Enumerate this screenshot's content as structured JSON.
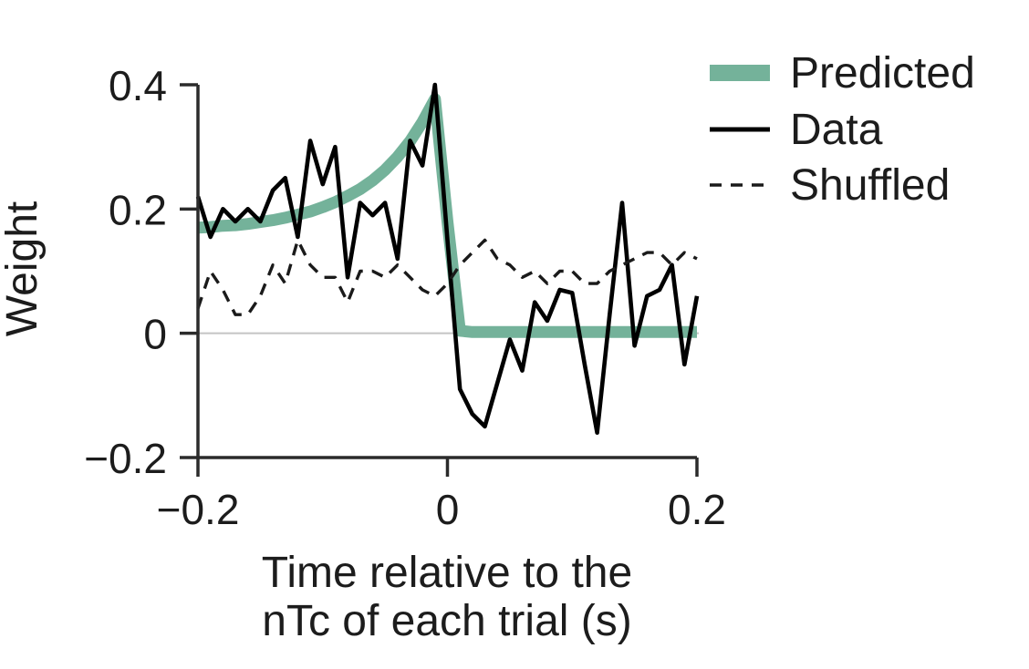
{
  "figure": {
    "ylabel": "Weight",
    "xlabel_line1": "Time relative to the",
    "xlabel_line2": "nTc of each trial (s)"
  },
  "legend": {
    "items": [
      {
        "label": "Predicted",
        "style": "thick-solid",
        "color": "#74b29a"
      },
      {
        "label": "Data",
        "style": "solid",
        "color": "#000000"
      },
      {
        "label": "Shuffled",
        "style": "dashed",
        "color": "#1a1a1a"
      }
    ]
  },
  "axes": {
    "x_tick_labels": [
      "−0.2",
      "0",
      "0.2"
    ],
    "x_tick_values": [
      -0.2,
      0,
      0.2
    ],
    "y_tick_labels": [
      "0.4",
      "0.2",
      "0",
      "−0.2"
    ],
    "y_tick_values": [
      0.4,
      0.2,
      0,
      -0.2
    ],
    "axis_color": "#2b2b2b",
    "zero_line_color": "#c4c4c4"
  },
  "chart_data": {
    "type": "line",
    "title": "",
    "xlabel": "Time relative to the nTc of each trial (s)",
    "ylabel": "Weight",
    "xlim": [
      -0.2,
      0.2
    ],
    "ylim": [
      -0.2,
      0.4
    ],
    "x_ticks": [
      -0.2,
      0,
      0.2
    ],
    "y_ticks": [
      -0.2,
      0,
      0.2,
      0.4
    ],
    "grid": "horizontal zero line only",
    "legend_position": "upper right, outside axes",
    "x": [
      -0.2,
      -0.19,
      -0.18,
      -0.17,
      -0.16,
      -0.15,
      -0.14,
      -0.13,
      -0.12,
      -0.11,
      -0.1,
      -0.09,
      -0.08,
      -0.07,
      -0.06,
      -0.05,
      -0.04,
      -0.03,
      -0.02,
      -0.01,
      0.0,
      0.01,
      0.02,
      0.03,
      0.04,
      0.05,
      0.06,
      0.07,
      0.08,
      0.09,
      0.1,
      0.11,
      0.12,
      0.13,
      0.14,
      0.15,
      0.16,
      0.17,
      0.18,
      0.19,
      0.2
    ],
    "series": [
      {
        "name": "Predicted",
        "style": "thick-solid",
        "color": "#74b29a",
        "values": [
          0.17,
          0.171,
          0.173,
          0.174,
          0.176,
          0.179,
          0.182,
          0.186,
          0.191,
          0.196,
          0.203,
          0.211,
          0.221,
          0.232,
          0.246,
          0.263,
          0.284,
          0.309,
          0.34,
          0.377,
          0.18,
          0.004,
          0.002,
          0.002,
          0.002,
          0.002,
          0.002,
          0.002,
          0.002,
          0.002,
          0.002,
          0.002,
          0.002,
          0.002,
          0.002,
          0.002,
          0.002,
          0.002,
          0.002,
          0.002,
          0.002
        ]
      },
      {
        "name": "Data",
        "style": "solid",
        "color": "#000000",
        "values": [
          0.22,
          0.155,
          0.2,
          0.18,
          0.2,
          0.18,
          0.23,
          0.25,
          0.155,
          0.31,
          0.24,
          0.3,
          0.09,
          0.21,
          0.19,
          0.21,
          0.12,
          0.31,
          0.27,
          0.4,
          0.15,
          -0.09,
          -0.13,
          -0.15,
          -0.08,
          -0.01,
          -0.06,
          0.05,
          0.02,
          0.07,
          0.065,
          -0.05,
          -0.16,
          0.03,
          0.21,
          -0.02,
          0.06,
          0.07,
          0.11,
          -0.05,
          0.06
        ]
      },
      {
        "name": "Shuffled",
        "style": "dashed",
        "color": "#1a1a1a",
        "values": [
          0.04,
          0.1,
          0.07,
          0.03,
          0.03,
          0.06,
          0.11,
          0.08,
          0.15,
          0.11,
          0.09,
          0.09,
          0.05,
          0.1,
          0.1,
          0.09,
          0.11,
          0.09,
          0.07,
          0.06,
          0.08,
          0.11,
          0.13,
          0.15,
          0.12,
          0.11,
          0.09,
          0.1,
          0.08,
          0.1,
          0.1,
          0.08,
          0.08,
          0.1,
          0.11,
          0.12,
          0.13,
          0.13,
          0.11,
          0.13,
          0.12
        ]
      }
    ]
  }
}
